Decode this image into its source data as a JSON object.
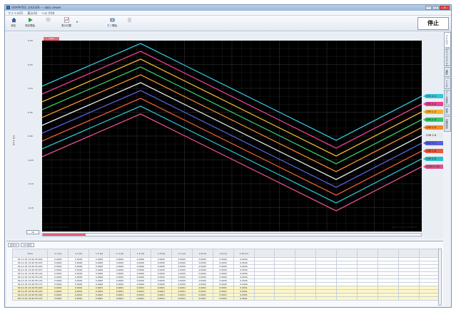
{
  "window": {
    "title": "GRAPHTEC LOGGER — data viewer"
  },
  "menu": [
    "ファイル(F)",
    "表示(V)",
    "ヘルプ(H)"
  ],
  "toolbar": {
    "buttons": [
      {
        "label": "設定",
        "icon": "home-settings-icon"
      },
      {
        "label": "測定開始",
        "icon": "play-icon"
      },
      {
        "label": "",
        "icon": "monitor-icon",
        "disabled": true
      },
      {
        "label": "表示切替",
        "icon": "chart-switch-icon"
      },
      {
        "label": "モニ開始",
        "icon": "monitor-start-icon"
      },
      {
        "label": "",
        "icon": "record-icon",
        "disabled": true
      }
    ],
    "stop_label": "停止"
  },
  "right_tabs": [
    "アナログ",
    "ロジック/パルス",
    "演算",
    "トリガ",
    "データ保存",
    "設定",
    "記録設定"
  ],
  "graph": {
    "cursor_label": "0.0S",
    "y_axis_title": "CH 1-10",
    "y_ticks": [
      "0.20",
      "0.15",
      "0.10",
      "0.05",
      "0.00",
      "-0.05",
      "-0.10",
      "-0.15",
      "-0.20"
    ],
    "time_start": "09-11-25 14:40:35.000",
    "time_end": "09-11-25 14:41:05.000",
    "zoom": "1S",
    "channels": [
      {
        "label": "CH1 1-1",
        "color": "#34c3d6"
      },
      {
        "label": "CH2 1-2",
        "color": "#e8418c"
      },
      {
        "label": "CH3 1-3",
        "color": "#f0b52e"
      },
      {
        "label": "CH4 1-4",
        "color": "#38c46a"
      },
      {
        "label": "CH5 1-5",
        "color": "#f08a2c"
      },
      {
        "label": "CH6 1-6",
        "color": "#e8e8e8"
      },
      {
        "label": "CH7 1-7",
        "color": "#5a5fd6"
      },
      {
        "label": "CH8 1-8",
        "color": "#e85a3a"
      },
      {
        "label": "CH9 1-9",
        "color": "#2abfc8"
      },
      {
        "label": "CH10 1-10",
        "color": "#e0508e"
      }
    ]
  },
  "table": {
    "controls": [
      "表示CH",
      "1CH表示"
    ],
    "headers": [
      "Time",
      "1-1\n[V]",
      "1-2\n[V]",
      "1-3\n[V]",
      "1-4\n[V]",
      "1-5\n[V]",
      "1-6\n[V]",
      "1-7\n[V]",
      "1-8\n[V]",
      "1-9\n[V]",
      "1-10\n[V]",
      "",
      "",
      "",
      "",
      "",
      "",
      "",
      "",
      ""
    ],
    "rows": [
      {
        "hl": false,
        "cells": [
          "09-11-25 14:40:35.000",
          "0.0000",
          "0.0000",
          "0.0000",
          "0.0000",
          "0.0000",
          "0.0000",
          "0.0000",
          "0.0000",
          "0.0000",
          "0.0000"
        ]
      },
      {
        "hl": false,
        "cells": [
          "09-11-25 14:40:35.025",
          "0.0000",
          "0.0000",
          "0.0000",
          "0.0000",
          "0.0000",
          "0.0000",
          "0.0000",
          "0.0000",
          "0.0000",
          "0.0000"
        ]
      },
      {
        "hl": false,
        "cells": [
          "09-11-25 14:40:35.050",
          "0.0000",
          "0.0000",
          "0.0000",
          "0.0000",
          "0.0000",
          "0.0000",
          "0.0000",
          "0.0000",
          "0.0000",
          "0.0000"
        ]
      },
      {
        "hl": false,
        "cells": [
          "09-11-25 14:40:35.075",
          "0.0000",
          "0.0000",
          "0.0000",
          "0.0000",
          "0.0000",
          "0.0000",
          "0.0000",
          "0.0000",
          "0.0000",
          "0.0000"
        ]
      },
      {
        "hl": false,
        "cells": [
          "09-11-25 14:40:35.100",
          "0.0000",
          "0.0000",
          "0.0000",
          "0.0000",
          "0.0000",
          "0.0000",
          "0.0000",
          "0.0000",
          "0.0000",
          "0.0000"
        ]
      },
      {
        "hl": false,
        "cells": [
          "09-11-25 14:40:35.125",
          "0.0000",
          "0.0000",
          "0.0000",
          "0.0000",
          "0.0000",
          "0.0000",
          "0.0000",
          "0.0000",
          "0.0000",
          "0.0000"
        ]
      },
      {
        "hl": false,
        "cells": [
          "09-11-25 14:40:35.150",
          "0.0000",
          "0.0000",
          "0.0000",
          "0.0000",
          "0.0000",
          "0.0000",
          "0.0000",
          "0.0000",
          "0.0000",
          "0.0000"
        ]
      },
      {
        "hl": false,
        "cells": [
          "09-11-25 14:40:35.175",
          "0.0000",
          "0.0000",
          "0.0000",
          "0.0000",
          "0.0000",
          "0.0000",
          "0.0000",
          "0.0000",
          "0.0000",
          "0.0000"
        ]
      },
      {
        "hl": true,
        "cells": [
          "09-11-25 14:40:35.200",
          "0.0001",
          "0.0001",
          "0.0001",
          "0.0001",
          "0.0001",
          "0.0001",
          "0.0001",
          "0.0001",
          "0.0001",
          "0.0001"
        ]
      },
      {
        "hl": true,
        "cells": [
          "09-11-25 14:40:35.225",
          "0.0001",
          "0.0001",
          "0.0001",
          "0.0001",
          "0.0001",
          "0.0001",
          "0.0001",
          "0.0001",
          "0.0001",
          "0.0001"
        ]
      },
      {
        "hl": true,
        "cells": [
          "09-11-25 14:40:35.250",
          "0.0001",
          "0.0001",
          "0.0001",
          "0.0001",
          "0.0001",
          "0.0001",
          "0.0001",
          "0.0001",
          "0.0001",
          "0.0001"
        ]
      },
      {
        "hl": true,
        "cells": [
          "09-11-25 14:40:35.275",
          "0.0001",
          "0.0001",
          "0.0001",
          "0.0001",
          "0.0001",
          "0.0001",
          "0.0001",
          "0.0001",
          "0.0001",
          "0.0001"
        ]
      }
    ]
  },
  "sheets": [
    "Sheet 1",
    "Sheet 2",
    "Sheet 3",
    "Sheet 4",
    "Sheet 5",
    "Sheet 6",
    "Sheet 7",
    "Sheet 8",
    "Sheet 9",
    "Sheet 10"
  ],
  "sheet_prefix": "No"
}
